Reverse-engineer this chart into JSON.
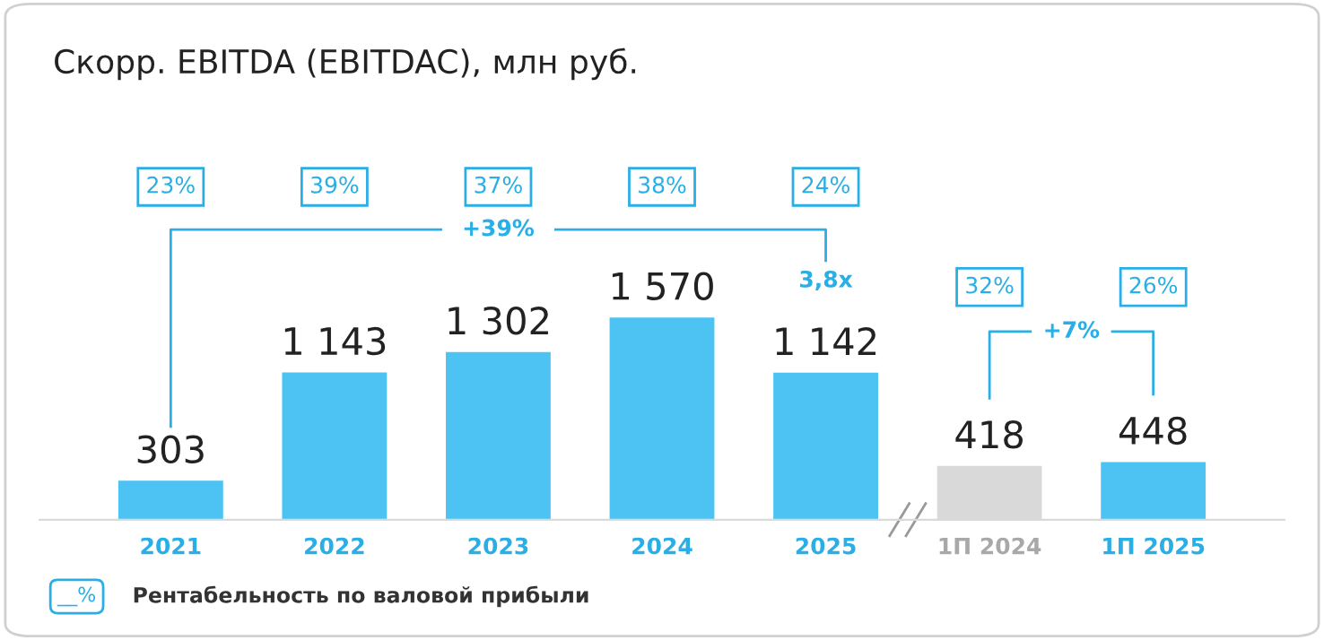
{
  "chart_data": {
    "type": "bar",
    "title": "Скорр. EBITDA (EBITDAC), млн руб.",
    "categories": [
      "2021",
      "2022",
      "2023",
      "2024",
      "2025",
      "1П 2024",
      "1П 2025"
    ],
    "values": [
      303,
      1143,
      1302,
      1570,
      1142,
      418,
      448
    ],
    "colors": [
      "#4cc3f3",
      "#4cc3f3",
      "#4cc3f3",
      "#4cc3f3",
      "#4cc3f3",
      "#d9d9d9",
      "#4cc3f3"
    ],
    "value_labels": [
      "303",
      "1 143",
      "1 302",
      "1 570",
      "1 142",
      "418",
      "448"
    ],
    "annotations": [
      "23%",
      "39%",
      "37%",
      "38%",
      "24%",
      "32%",
      "26%",
      "+39%",
      "3,8x",
      "+7%",
      "__%",
      "Рентабельность по валовой прибыли"
    ],
    "grid": false,
    "legend": false
  }
}
